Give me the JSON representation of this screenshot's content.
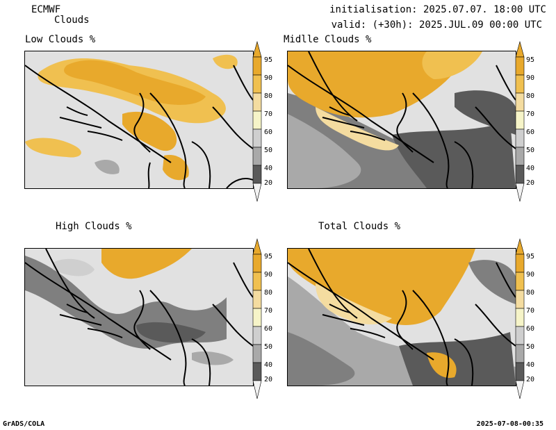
{
  "header": {
    "model": "ECMWF",
    "field": "Clouds",
    "init": "initialisation: 2025.07.07. 18:00 UTC",
    "valid": "valid: (+30h): 2025.JUL.09 00:00 UTC"
  },
  "panels": [
    {
      "title": "Low Clouds %"
    },
    {
      "title": "Midlle Clouds %"
    },
    {
      "title": "High Clouds %"
    },
    {
      "title": "Total Clouds %"
    }
  ],
  "colorbar": {
    "levels": [
      "95",
      "90",
      "80",
      "70",
      "60",
      "50",
      "40",
      "20"
    ],
    "colors": {
      "c95": "#e8a92c",
      "c90": "#f0c050",
      "c80": "#f4dca0",
      "c70": "#f6f4c8",
      "c60": "#cfcfcf",
      "c50": "#a9a9a9",
      "c40": "#7f7f7f",
      "c20": "#5a5a5a",
      "c0": "#e1e1e1"
    }
  },
  "footer": {
    "left": "GrADS/COLA",
    "right": "2025-07-08-00:35"
  }
}
